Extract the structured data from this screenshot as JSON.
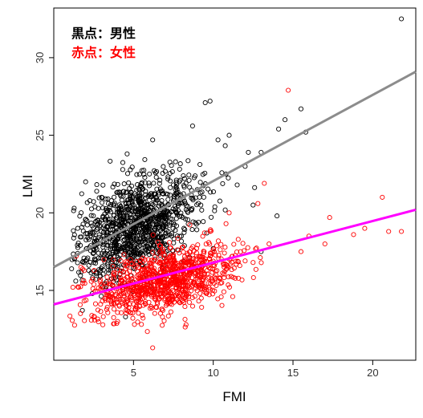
{
  "chart_data": {
    "type": "scatter",
    "title": "",
    "xlabel": "FMI",
    "ylabel": "LMI",
    "xlim": [
      0,
      22.7
    ],
    "ylim": [
      10.5,
      33.2
    ],
    "xticks": [
      5,
      10,
      15,
      20
    ],
    "yticks": [
      15,
      20,
      25,
      30
    ],
    "grid": false,
    "legend_position": "top-left",
    "legend": [
      {
        "label": "黒点：男性",
        "color": "#000000"
      },
      {
        "label": "赤点：女性",
        "color": "#ff0000"
      }
    ],
    "series": [
      {
        "name": "男性",
        "color": "#000000",
        "marker": "open-circle",
        "points": [
          [
            21.8,
            32.5
          ],
          [
            14.5,
            26.0
          ],
          [
            15.5,
            26.7
          ],
          [
            9.5,
            27.1
          ],
          [
            9.8,
            27.2
          ],
          [
            8.7,
            25.6
          ],
          [
            6.2,
            24.7
          ],
          [
            12.2,
            23.9
          ],
          [
            13.0,
            23.9
          ],
          [
            4.6,
            23.8
          ],
          [
            15.8,
            25.2
          ],
          [
            14.1,
            25.4
          ],
          [
            10.3,
            24.7
          ],
          [
            11.0,
            25.0
          ],
          [
            3.0,
            21.0
          ],
          [
            2.5,
            17.7
          ],
          [
            1.5,
            19.0
          ],
          [
            2.0,
            22.0
          ],
          [
            4.0,
            17.0
          ],
          [
            7.0,
            20.0
          ],
          [
            5.5,
            15.0
          ],
          [
            4.5,
            13.3
          ],
          [
            3.8,
            16.0
          ],
          [
            9.0,
            21.5
          ],
          [
            8.0,
            18.5
          ],
          [
            11.5,
            21.8
          ],
          [
            12.5,
            20.5
          ],
          [
            14.0,
            19.8
          ],
          [
            13.0,
            17.5
          ],
          [
            6.0,
            22.5
          ],
          [
            10.8,
            22.5
          ],
          [
            12.0,
            23.0
          ],
          [
            7.5,
            21.8
          ],
          [
            5.2,
            19.5
          ]
        ],
        "cluster": {
          "x_mean": 5.2,
          "x_sd": 1.9,
          "y_mean": 19.2,
          "y_sd": 1.5,
          "slope": 0.42,
          "count": 1100
        }
      },
      {
        "name": "女性",
        "color": "#ff0000",
        "marker": "open-circle",
        "points": [
          [
            14.7,
            27.9
          ],
          [
            13.2,
            21.9
          ],
          [
            17.3,
            19.7
          ],
          [
            20.6,
            21.0
          ],
          [
            6.2,
            11.3
          ],
          [
            15.5,
            17.5
          ],
          [
            18.8,
            18.6
          ],
          [
            21.0,
            18.8
          ],
          [
            21.8,
            18.8
          ],
          [
            19.5,
            19.0
          ],
          [
            16.0,
            18.5
          ],
          [
            13.5,
            18.0
          ],
          [
            1.2,
            15.2
          ],
          [
            1.7,
            16.5
          ],
          [
            1.4,
            17.2
          ],
          [
            11.2,
            17.2
          ],
          [
            12.5,
            16.8
          ],
          [
            10.8,
            19.3
          ],
          [
            9.8,
            18.8
          ],
          [
            3.5,
            14.6
          ],
          [
            4.0,
            13.0
          ],
          [
            12.8,
            20.6
          ],
          [
            11.0,
            20.0
          ],
          [
            17.0,
            18.0
          ]
        ],
        "cluster": {
          "x_mean": 7.0,
          "x_sd": 2.3,
          "y_mean": 15.6,
          "y_sd": 1.0,
          "slope": 0.2,
          "count": 1000
        }
      }
    ],
    "fit_lines": [
      {
        "series": "男性",
        "color": "#8c8c8c",
        "x": [
          0,
          22.7
        ],
        "y": [
          16.5,
          29.1
        ]
      },
      {
        "series": "女性",
        "color": "#ff00ff",
        "x": [
          0,
          22.7
        ],
        "y": [
          14.1,
          20.2
        ]
      }
    ]
  }
}
